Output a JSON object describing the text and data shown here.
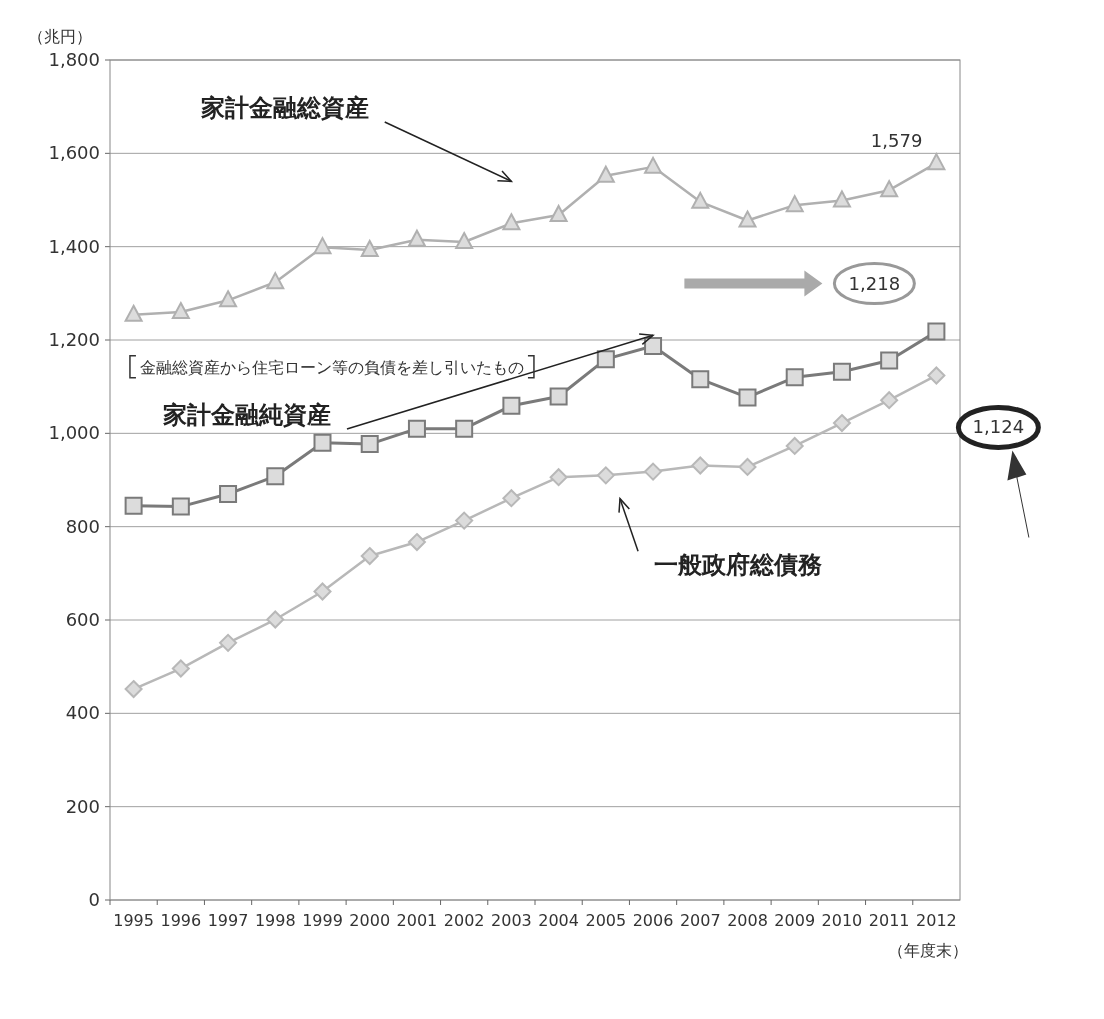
{
  "chart_data": {
    "type": "line",
    "xlabel": "（年度末）",
    "ylabel": "（兆円）",
    "categories": [
      "1995",
      "1996",
      "1997",
      "1998",
      "1999",
      "2000",
      "2001",
      "2002",
      "2003",
      "2004",
      "2005",
      "2006",
      "2007",
      "2008",
      "2009",
      "2010",
      "2011",
      "2012"
    ],
    "ylim": [
      0,
      1800
    ],
    "yticks": [
      0,
      200,
      400,
      600,
      800,
      {
        "value": 1000,
        "label": "1,000"
      },
      {
        "value": 1200,
        "label": "1,200"
      },
      {
        "value": 1400,
        "label": "1,400"
      },
      {
        "value": 1600,
        "label": "1,600"
      },
      {
        "value": 1800,
        "label": "1,800"
      }
    ],
    "grid": "y",
    "series": [
      {
        "name": "家計金融総資産",
        "color": "#b0b0b0",
        "marker": "triangle",
        "values": [
          1254,
          1260,
          1285,
          1324,
          1399,
          1393,
          1415,
          1410,
          1450,
          1468,
          1552,
          1571,
          1496,
          1456,
          1489,
          1499,
          1521,
          1579
        ],
        "value_labels": [
          null,
          null,
          null,
          null,
          null,
          null,
          null,
          null,
          null,
          null,
          null,
          null,
          null,
          null,
          null,
          null,
          null,
          "1,579"
        ]
      },
      {
        "name": "家計金融純資産",
        "color": "#7a7a7a",
        "marker": "square",
        "values": [
          845,
          843,
          870,
          908,
          980,
          977,
          1010,
          1010,
          1059,
          1079,
          1159,
          1187,
          1116,
          1077,
          1120,
          1132,
          1156,
          1218
        ],
        "value_labels": [
          null,
          null,
          null,
          null,
          null,
          null,
          null,
          null,
          null,
          null,
          null,
          null,
          null,
          null,
          null,
          null,
          null,
          "1,218"
        ]
      },
      {
        "name": "一般政府総債務",
        "color": "#b8b8b8",
        "marker": "diamond",
        "values": [
          452,
          496,
          551,
          601,
          661,
          737,
          767,
          813,
          861,
          906,
          910,
          918,
          931,
          928,
          973,
          1022,
          1071,
          1124
        ],
        "value_labels": [
          null,
          null,
          null,
          null,
          null,
          null,
          null,
          null,
          null,
          null,
          null,
          null,
          null,
          null,
          null,
          null,
          null,
          "1,124"
        ]
      }
    ],
    "annotations": [
      "金融総資産から住宅ローン等の負債を差し引いたもの"
    ]
  }
}
